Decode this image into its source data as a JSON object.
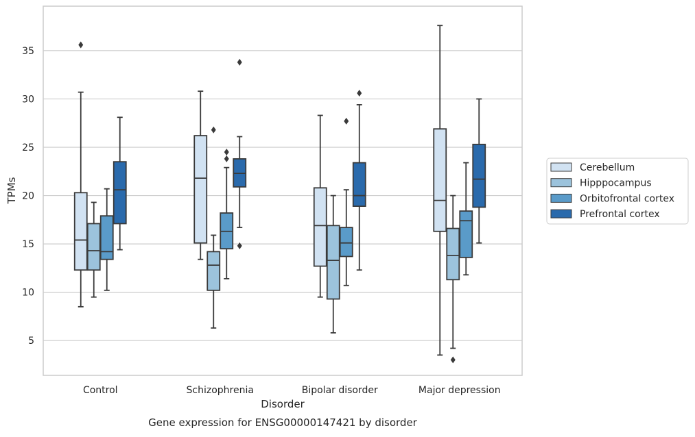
{
  "chart_data": {
    "type": "boxplot",
    "title": "Gene expression for ENSG00000147421 by disorder",
    "xlabel": "Disorder",
    "ylabel": "TPMs",
    "ylim": [
      1.4,
      39.6
    ],
    "yticks": [
      5,
      10,
      15,
      20,
      25,
      30,
      35
    ],
    "grid": "horizontal",
    "legend_position": "right",
    "categories": [
      "Control",
      "Schizophrenia",
      "Bipolar disorder",
      "Major depression"
    ],
    "series": [
      {
        "name": "Cerebellum",
        "color": "#d1e2f2",
        "boxes": [
          {
            "whisker_low": 8.5,
            "q1": 12.3,
            "median": 15.4,
            "q3": 20.3,
            "whisker_high": 30.7,
            "outliers": [
              35.6
            ]
          },
          {
            "whisker_low": 13.4,
            "q1": 15.1,
            "median": 21.8,
            "q3": 26.2,
            "whisker_high": 30.8,
            "outliers": []
          },
          {
            "whisker_low": 9.5,
            "q1": 12.7,
            "median": 16.9,
            "q3": 20.8,
            "whisker_high": 28.3,
            "outliers": []
          },
          {
            "whisker_low": 3.5,
            "q1": 16.3,
            "median": 19.5,
            "q3": 26.9,
            "whisker_high": 37.6,
            "outliers": []
          }
        ]
      },
      {
        "name": "Hipppocampus",
        "color": "#9cc3dc",
        "boxes": [
          {
            "whisker_low": 9.5,
            "q1": 12.3,
            "median": 14.3,
            "q3": 17.1,
            "whisker_high": 19.3,
            "outliers": []
          },
          {
            "whisker_low": 6.3,
            "q1": 10.2,
            "median": 12.8,
            "q3": 14.2,
            "whisker_high": 15.9,
            "outliers": [
              26.8
            ]
          },
          {
            "whisker_low": 5.8,
            "q1": 9.3,
            "median": 13.3,
            "q3": 16.9,
            "whisker_high": 20.0,
            "outliers": []
          },
          {
            "whisker_low": 4.2,
            "q1": 11.3,
            "median": 13.8,
            "q3": 16.6,
            "whisker_high": 20.0,
            "outliers": [
              3.0
            ]
          }
        ]
      },
      {
        "name": "Orbitofrontal cortex",
        "color": "#5a9bc9",
        "boxes": [
          {
            "whisker_low": 10.2,
            "q1": 13.4,
            "median": 14.2,
            "q3": 17.9,
            "whisker_high": 20.7,
            "outliers": []
          },
          {
            "whisker_low": 11.4,
            "q1": 14.5,
            "median": 16.3,
            "q3": 18.2,
            "whisker_high": 22.9,
            "outliers": [
              24.5,
              23.8
            ]
          },
          {
            "whisker_low": 10.7,
            "q1": 13.7,
            "median": 15.1,
            "q3": 16.7,
            "whisker_high": 20.6,
            "outliers": [
              27.7
            ]
          },
          {
            "whisker_low": 11.8,
            "q1": 13.6,
            "median": 17.4,
            "q3": 18.4,
            "whisker_high": 23.4,
            "outliers": []
          }
        ]
      },
      {
        "name": "Prefrontal cortex",
        "color": "#2a6aac",
        "boxes": [
          {
            "whisker_low": 14.4,
            "q1": 17.1,
            "median": 20.6,
            "q3": 23.5,
            "whisker_high": 28.1,
            "outliers": []
          },
          {
            "whisker_low": 16.7,
            "q1": 20.9,
            "median": 22.3,
            "q3": 23.8,
            "whisker_high": 26.1,
            "outliers": [
              33.8,
              14.8
            ]
          },
          {
            "whisker_low": 12.3,
            "q1": 18.9,
            "median": 20.0,
            "q3": 23.4,
            "whisker_high": 29.4,
            "outliers": [
              30.6
            ]
          },
          {
            "whisker_low": 15.1,
            "q1": 18.8,
            "median": 21.7,
            "q3": 25.3,
            "whisker_high": 30.0,
            "outliers": []
          }
        ]
      }
    ]
  }
}
